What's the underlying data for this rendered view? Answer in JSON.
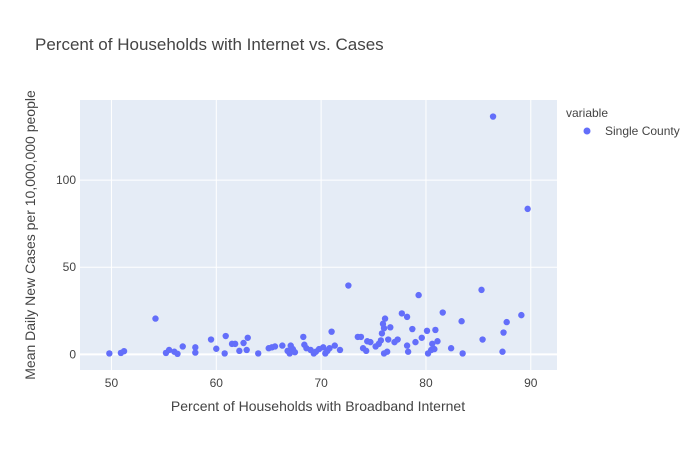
{
  "chart_data": {
    "type": "scatter",
    "title": "Percent of Households with Internet vs. Cases",
    "xlabel": "Percent of Households with Broadband Internet",
    "ylabel": "Mean Daily New Cases per 10,000,000 people",
    "xlim": [
      47,
      92.5
    ],
    "ylim": [
      -9,
      146
    ],
    "xticks": [
      50,
      60,
      70,
      80,
      90
    ],
    "yticks": [
      0,
      50,
      100
    ],
    "grid": true,
    "legend": {
      "title": "variable",
      "placement": "right"
    },
    "colors": {
      "plot_background": "#E5ECF6",
      "grid": "#FFFFFF",
      "marker": "#636EFA"
    },
    "series": [
      {
        "name": "Single County",
        "points": [
          [
            49.8,
            0.5
          ],
          [
            50.9,
            0.8
          ],
          [
            51.2,
            1.8
          ],
          [
            54.2,
            20.5
          ],
          [
            55.2,
            0.8
          ],
          [
            55.5,
            2.5
          ],
          [
            56.0,
            1.5
          ],
          [
            56.3,
            0.3
          ],
          [
            56.8,
            4.5
          ],
          [
            58.0,
            1.0
          ],
          [
            58.0,
            4.0
          ],
          [
            59.5,
            8.5
          ],
          [
            60.0,
            3.2
          ],
          [
            60.8,
            0.5
          ],
          [
            60.9,
            10.5
          ],
          [
            61.5,
            6.0
          ],
          [
            61.8,
            6.0
          ],
          [
            62.2,
            2.0
          ],
          [
            62.6,
            6.5
          ],
          [
            62.9,
            2.5
          ],
          [
            63.0,
            9.5
          ],
          [
            64.0,
            0.5
          ],
          [
            65.0,
            3.5
          ],
          [
            65.3,
            4.0
          ],
          [
            65.6,
            4.5
          ],
          [
            66.3,
            5.0
          ],
          [
            66.8,
            2.0
          ],
          [
            67.0,
            0.5
          ],
          [
            67.1,
            5.0
          ],
          [
            67.3,
            3.0
          ],
          [
            67.5,
            1.2
          ],
          [
            68.3,
            10.0
          ],
          [
            68.4,
            5.5
          ],
          [
            68.6,
            3.5
          ],
          [
            69.0,
            2.5
          ],
          [
            69.3,
            0.5
          ],
          [
            69.5,
            1.5
          ],
          [
            69.8,
            3.0
          ],
          [
            70.2,
            4.0
          ],
          [
            70.4,
            0.5
          ],
          [
            70.6,
            2.0
          ],
          [
            70.8,
            3.5
          ],
          [
            71.0,
            13.0
          ],
          [
            71.3,
            5.0
          ],
          [
            71.8,
            2.5
          ],
          [
            72.6,
            39.5
          ],
          [
            73.5,
            10.0
          ],
          [
            73.8,
            10.0
          ],
          [
            74.0,
            3.5
          ],
          [
            74.3,
            2.0
          ],
          [
            74.4,
            7.5
          ],
          [
            74.7,
            7.0
          ],
          [
            75.2,
            4.5
          ],
          [
            75.5,
            6.0
          ],
          [
            75.7,
            8.0
          ],
          [
            75.8,
            12.0
          ],
          [
            75.9,
            17.5
          ],
          [
            76.0,
            15.0
          ],
          [
            76.0,
            0.5
          ],
          [
            76.1,
            20.5
          ],
          [
            76.3,
            1.5
          ],
          [
            76.4,
            8.5
          ],
          [
            76.6,
            15.5
          ],
          [
            77.0,
            7.0
          ],
          [
            77.3,
            8.5
          ],
          [
            77.7,
            23.5
          ],
          [
            78.2,
            21.5
          ],
          [
            78.2,
            5.0
          ],
          [
            78.3,
            1.5
          ],
          [
            78.7,
            14.5
          ],
          [
            79.0,
            7.0
          ],
          [
            79.3,
            34.0
          ],
          [
            79.6,
            9.5
          ],
          [
            80.1,
            13.5
          ],
          [
            80.2,
            0.5
          ],
          [
            80.5,
            2.5
          ],
          [
            80.6,
            6.0
          ],
          [
            80.8,
            3.0
          ],
          [
            80.9,
            14.0
          ],
          [
            81.1,
            7.5
          ],
          [
            81.6,
            24.0
          ],
          [
            82.4,
            3.5
          ],
          [
            83.4,
            19.0
          ],
          [
            83.5,
            0.5
          ],
          [
            85.3,
            37.0
          ],
          [
            85.4,
            8.5
          ],
          [
            86.4,
            136.5
          ],
          [
            87.3,
            1.5
          ],
          [
            87.4,
            12.5
          ],
          [
            87.7,
            18.5
          ],
          [
            89.1,
            22.5
          ],
          [
            89.7,
            83.5
          ]
        ]
      }
    ]
  }
}
